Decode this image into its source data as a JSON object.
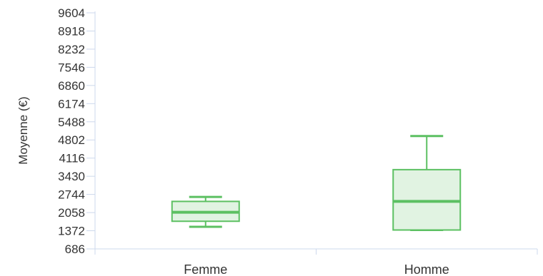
{
  "chart_data": {
    "type": "boxplot",
    "title": "",
    "xlabel": "",
    "ylabel": "Moyenne (€)",
    "ylim": [
      686,
      9604
    ],
    "yticks": [
      686,
      1372,
      2058,
      2744,
      3430,
      4116,
      4802,
      5488,
      6174,
      6860,
      7546,
      8232,
      8918,
      9604
    ],
    "categories": [
      "Femme",
      "Homme"
    ],
    "boxes": [
      {
        "category": "Femme",
        "min": 1520,
        "q1": 1730,
        "median": 2070,
        "q3": 2480,
        "max": 2650
      },
      {
        "category": "Homme",
        "min": 1400,
        "q1": 1400,
        "median": 2480,
        "q3": 3680,
        "max": 4950
      }
    ],
    "colors": {
      "stroke": "#5cc062",
      "fill": "#e1f3e2",
      "axis": "#cdd8ec"
    }
  }
}
